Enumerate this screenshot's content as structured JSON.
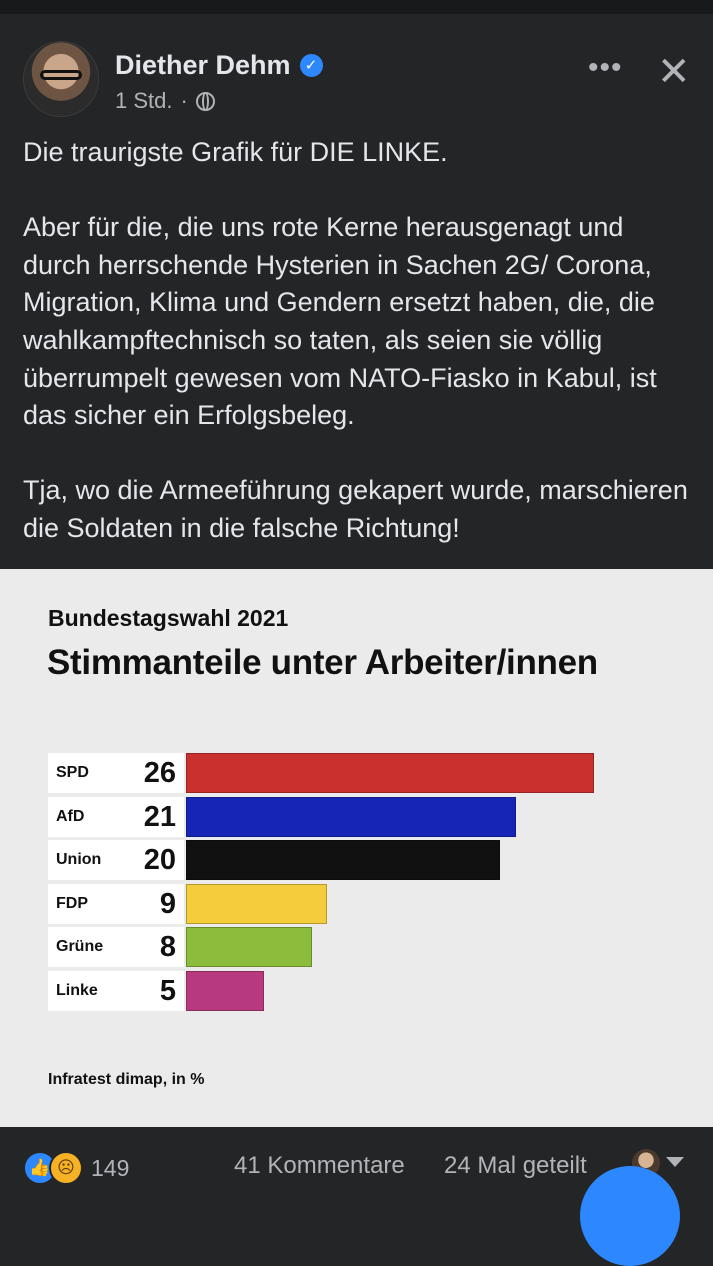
{
  "post": {
    "author": "Diether Dehm",
    "time": "1 Std.",
    "separator": "·",
    "paragraphs": [
      "Die traurigste Grafik für DIE LINKE.",
      "Aber für die, die uns rote Kerne herausgenagt und durch herrschende Hysterien in Sachen 2G/ Corona, Migration, Klima und Gendern ersetzt haben, die, die wahlkampftechnisch so taten, als seien sie völlig überrumpelt gewesen vom NATO-Fiasko in Kabul, ist das sicher ein Erfolgsbeleg.",
      "Tja, wo die Armeeführung gekapert wurde, marschieren die Soldaten in die falsche Richtung!"
    ],
    "icons": {
      "more": "more-horizontal-icon",
      "close": "close-icon",
      "privacy": "globe-icon",
      "verified": "verified-badge-icon"
    }
  },
  "chart_data": {
    "type": "bar",
    "orientation": "horizontal",
    "subtitle": "Bundestagswahl 2021",
    "title": "Stimmanteile unter Arbeiter/innen",
    "source": "Infratest dimap, in %",
    "categories": [
      "SPD",
      "AfD",
      "Union",
      "FDP",
      "Grüne",
      "Linke"
    ],
    "values": [
      26,
      21,
      20,
      9,
      8,
      5
    ],
    "colors": [
      "#c8312d",
      "#1625b6",
      "#111111",
      "#f3cd3c",
      "#8cbc3c",
      "#b83a7e"
    ],
    "xlim": [
      0,
      26
    ]
  },
  "footer": {
    "reaction_count": "149",
    "comments": "41 Kommentare",
    "shares": "24 Mal geteilt",
    "icons": {
      "like": "like-reaction-icon",
      "sad": "sad-reaction-icon",
      "dropdown": "chevron-down-icon"
    }
  },
  "colors": {
    "background": "#242526",
    "text": "#e4e6eb",
    "muted": "#b0b3b8",
    "accent": "#2d88ff"
  }
}
